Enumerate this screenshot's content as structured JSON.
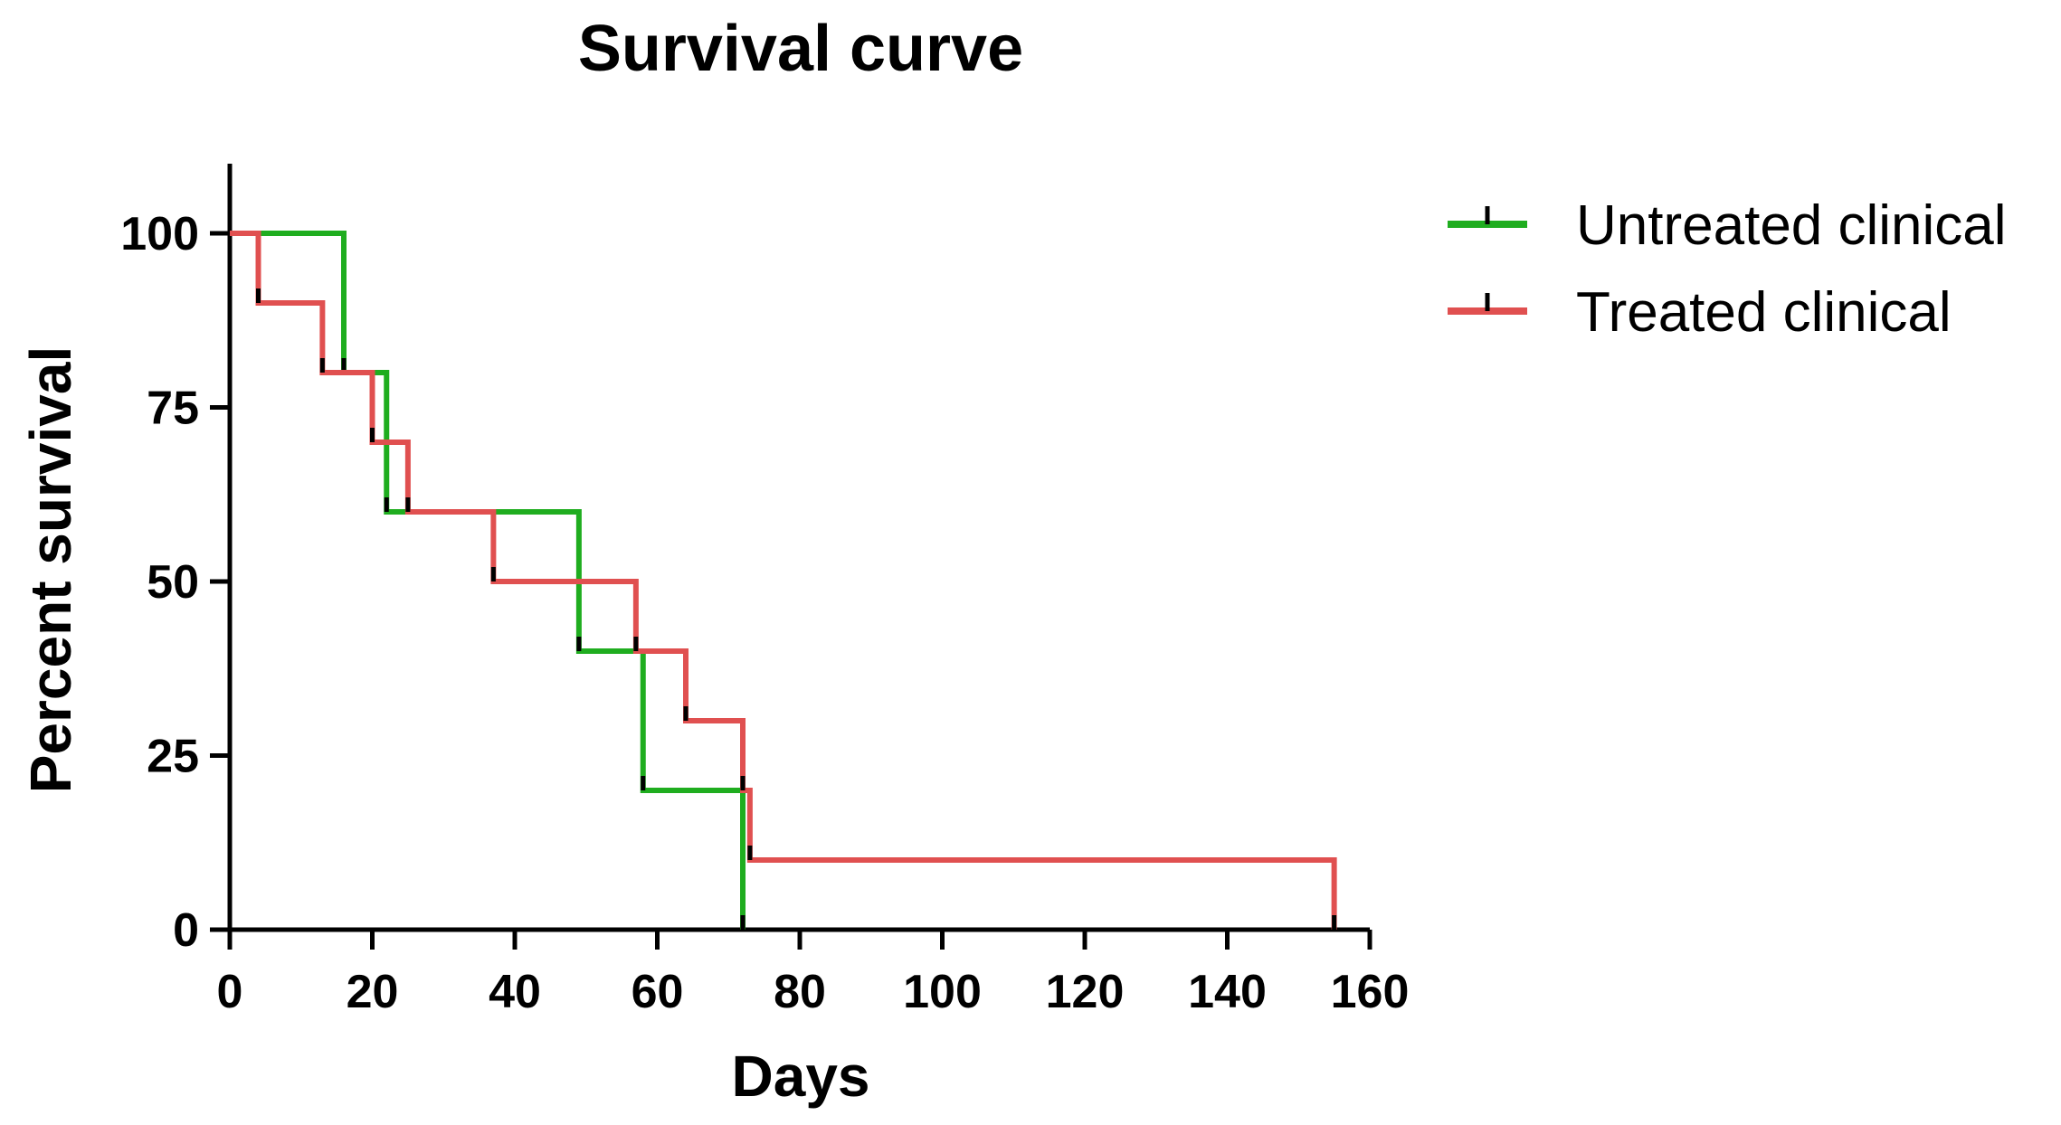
{
  "chart_data": {
    "type": "line",
    "subtype": "kaplan-meier step",
    "title": "Survival curve",
    "xlabel": "Days",
    "ylabel": "Percent survival",
    "xlim": [
      0,
      160
    ],
    "ylim": [
      0,
      110
    ],
    "xticks": [
      0,
      20,
      40,
      60,
      80,
      100,
      120,
      140,
      160
    ],
    "yticks": [
      0,
      25,
      50,
      75,
      100
    ],
    "grid": false,
    "legend_position": "top-right",
    "series": [
      {
        "name": "Untreated clinical",
        "color": "#1fad1f",
        "steps": [
          {
            "x": 0,
            "y": 100
          },
          {
            "x": 16,
            "y": 80
          },
          {
            "x": 22,
            "y": 60
          },
          {
            "x": 49,
            "y": 40
          },
          {
            "x": 58,
            "y": 20
          },
          {
            "x": 72,
            "y": 0
          }
        ],
        "end_x": 72,
        "censor_x": [
          16,
          22,
          49,
          58,
          72
        ]
      },
      {
        "name": "Treated clinical",
        "color": "#e05050",
        "steps": [
          {
            "x": 0,
            "y": 100
          },
          {
            "x": 4,
            "y": 90
          },
          {
            "x": 13,
            "y": 80
          },
          {
            "x": 20,
            "y": 70
          },
          {
            "x": 25,
            "y": 60
          },
          {
            "x": 37,
            "y": 50
          },
          {
            "x": 57,
            "y": 40
          },
          {
            "x": 64,
            "y": 30
          },
          {
            "x": 72,
            "y": 20
          },
          {
            "x": 73,
            "y": 10
          },
          {
            "x": 155,
            "y": 0
          }
        ],
        "end_x": 155,
        "censor_x": [
          4,
          13,
          20,
          25,
          37,
          57,
          64,
          72,
          73,
          155
        ]
      }
    ]
  }
}
